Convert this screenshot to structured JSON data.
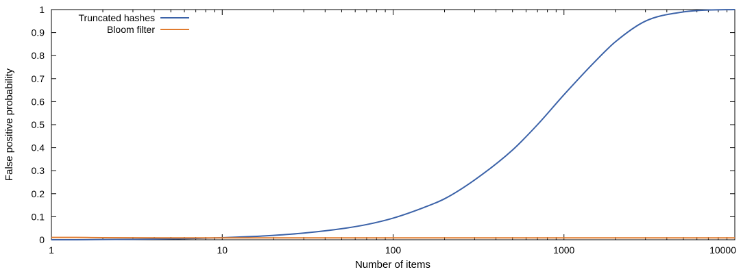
{
  "chart_data": {
    "type": "line",
    "title": "",
    "xlabel": "Number of items",
    "ylabel": "False positive probability",
    "x_scale": "log",
    "xlim": [
      1,
      10000
    ],
    "ylim": [
      0,
      1
    ],
    "x_ticks": [
      1,
      10,
      100,
      1000,
      10000
    ],
    "x_tick_labels": [
      "1",
      "10",
      "100",
      "1000",
      "10000"
    ],
    "y_ticks": [
      0,
      0.1,
      0.2,
      0.3,
      0.4,
      0.5,
      0.6,
      0.7,
      0.8,
      0.9,
      1
    ],
    "y_tick_labels": [
      "0",
      "0.1",
      "0.2",
      "0.3",
      "0.4",
      "0.5",
      "0.6",
      "0.7",
      "0.8",
      "0.9",
      "1"
    ],
    "grid": false,
    "legend_position": "top-left",
    "series": [
      {
        "name": "Truncated hashes",
        "color": "#3b62a8",
        "x": [
          1,
          1.4,
          2,
          3,
          5,
          7,
          10,
          15,
          20,
          30,
          50,
          70,
          100,
          150,
          200,
          300,
          500,
          700,
          1000,
          1500,
          2000,
          3000,
          5000,
          7000,
          10000
        ],
        "y": [
          0,
          0,
          0.001,
          0.002,
          0.004,
          0.006,
          0.009,
          0.014,
          0.019,
          0.029,
          0.048,
          0.066,
          0.094,
          0.139,
          0.178,
          0.26,
          0.39,
          0.5,
          0.63,
          0.77,
          0.86,
          0.95,
          0.99,
          0.998,
          1
        ]
      },
      {
        "name": "Bloom filter",
        "color": "#e07b2e",
        "x": [
          1,
          1.4,
          2,
          10,
          100,
          1000,
          10000
        ],
        "y": [
          0.01,
          0.01,
          0.009,
          0.008,
          0.008,
          0.008,
          0.008
        ]
      }
    ]
  }
}
